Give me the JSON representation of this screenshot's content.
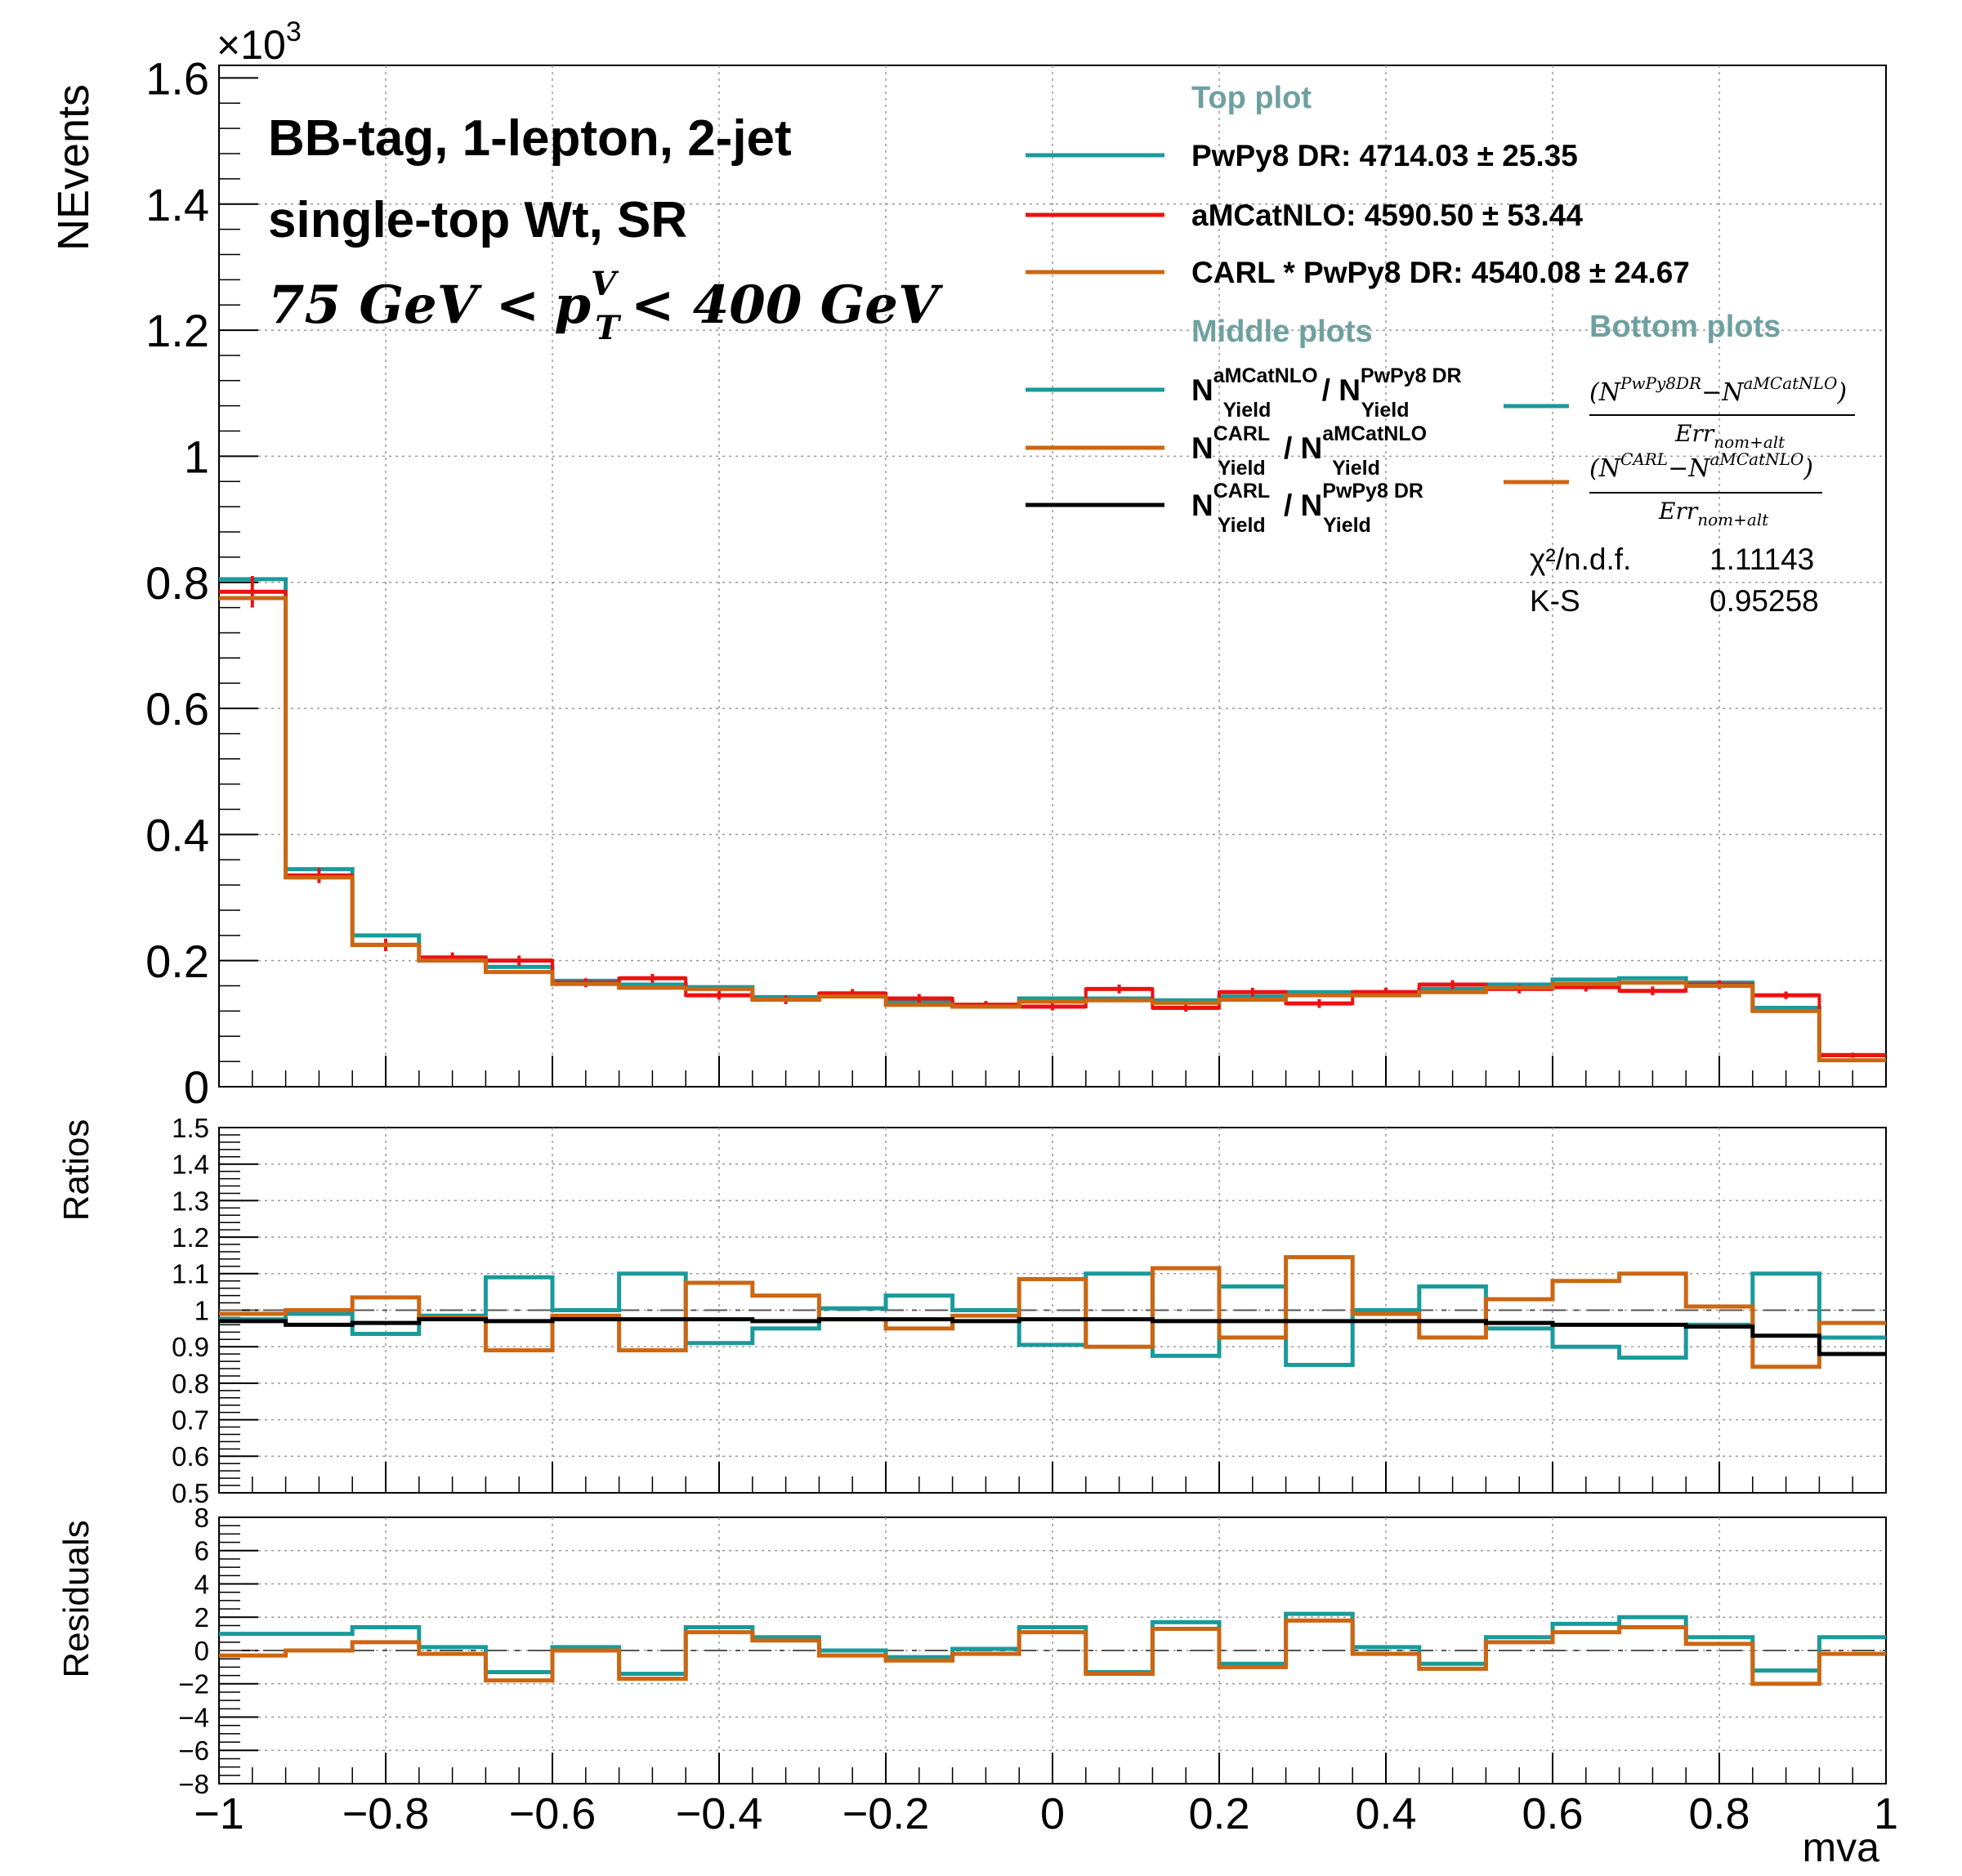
{
  "chart_data": {
    "type": "line",
    "xlabel": "mva",
    "x_edges": [
      -1.0,
      -0.92,
      -0.84,
      -0.76,
      -0.68,
      -0.6,
      -0.52,
      -0.44,
      -0.36,
      -0.28,
      -0.2,
      -0.12,
      -0.04,
      0.04,
      0.12,
      0.2,
      0.28,
      0.36,
      0.44,
      0.52,
      0.6,
      0.68,
      0.76,
      0.84,
      0.92,
      1.0
    ],
    "x_ticks": [
      "−1",
      "−0.8",
      "−0.6",
      "−0.4",
      "−0.2",
      "0",
      "0.2",
      "0.4",
      "0.6",
      "0.8",
      "1"
    ],
    "x_tick_values": [
      -1,
      -0.8,
      -0.6,
      -0.4,
      -0.2,
      0,
      0.2,
      0.4,
      0.6,
      0.8,
      1
    ],
    "colors": {
      "teal": "#1a9a9a",
      "red": "#ee1111",
      "orange": "#cc6612",
      "black": "#000000",
      "legend_header": "#6fa0a0"
    },
    "annotation": {
      "line1": "BB-tag, 1-lepton, 2-jet",
      "line2": "single-top Wt, SR",
      "line3_left": "75 GeV <",
      "line3_pt_base": "p",
      "line3_pt_sup": "V",
      "line3_pt_sub": "T",
      "line3_right": "< 400 GeV"
    },
    "top": {
      "ylabel": "NEvents",
      "exponent_label": "×10",
      "exponent_power": "3",
      "ylim": [
        0,
        1.62
      ],
      "y_ticks": [
        "0",
        "0.2",
        "0.4",
        "0.6",
        "0.8",
        "1",
        "1.2",
        "1.4",
        "1.6"
      ],
      "y_tick_values": [
        0,
        0.2,
        0.4,
        0.6,
        0.8,
        1.0,
        1.2,
        1.4,
        1.6
      ],
      "series": [
        {
          "name": "PwPy8 DR: 4714.03 ± 25.35",
          "color": "teal",
          "style": "step",
          "values": [
            0.805,
            0.345,
            0.24,
            0.205,
            0.19,
            0.168,
            0.162,
            0.158,
            0.142,
            0.145,
            0.135,
            0.13,
            0.14,
            0.14,
            0.137,
            0.143,
            0.15,
            0.15,
            0.155,
            0.162,
            0.17,
            0.172,
            0.165,
            0.125,
            0.05
          ]
        },
        {
          "name": "aMCatNLO: 4590.50 ± 53.44",
          "color": "red",
          "style": "errorbar",
          "values": [
            0.785,
            0.335,
            0.225,
            0.205,
            0.2,
            0.165,
            0.172,
            0.145,
            0.138,
            0.148,
            0.14,
            0.13,
            0.127,
            0.155,
            0.125,
            0.15,
            0.132,
            0.15,
            0.162,
            0.155,
            0.158,
            0.152,
            0.162,
            0.145,
            0.05
          ],
          "errors": [
            0.025,
            0.012,
            0.01,
            0.008,
            0.008,
            0.007,
            0.007,
            0.007,
            0.007,
            0.007,
            0.007,
            0.006,
            0.006,
            0.007,
            0.006,
            0.007,
            0.007,
            0.007,
            0.007,
            0.007,
            0.007,
            0.007,
            0.007,
            0.006,
            0.004
          ]
        },
        {
          "name": "CARL * PwPy8 DR: 4540.08 ± 24.67",
          "color": "orange",
          "style": "step",
          "values": [
            0.775,
            0.332,
            0.225,
            0.2,
            0.182,
            0.163,
            0.157,
            0.155,
            0.138,
            0.143,
            0.13,
            0.127,
            0.135,
            0.137,
            0.133,
            0.138,
            0.145,
            0.145,
            0.15,
            0.157,
            0.163,
            0.165,
            0.16,
            0.12,
            0.042
          ]
        }
      ]
    },
    "middle": {
      "ylabel": "Ratios",
      "ylim": [
        0.5,
        1.5
      ],
      "y_ticks": [
        "0.5",
        "0.6",
        "0.7",
        "0.8",
        "0.9",
        "1",
        "1.1",
        "1.2",
        "1.3",
        "1.4",
        "1.5"
      ],
      "y_tick_values": [
        0.5,
        0.6,
        0.7,
        0.8,
        0.9,
        1.0,
        1.1,
        1.2,
        1.3,
        1.4,
        1.5
      ],
      "series": [
        {
          "name": "aMCatNLO / PwPy8 DR",
          "color": "teal",
          "values": [
            0.975,
            0.99,
            0.935,
            0.985,
            1.09,
            1.0,
            1.1,
            0.91,
            0.95,
            1.005,
            1.04,
            1.0,
            0.905,
            1.1,
            0.875,
            1.065,
            0.85,
            1.0,
            1.065,
            0.95,
            0.9,
            0.87,
            0.96,
            1.1,
            0.925
          ]
        },
        {
          "name": "CARL / aMCatNLO",
          "color": "orange",
          "values": [
            0.99,
            1.0,
            1.035,
            0.98,
            0.89,
            0.985,
            0.89,
            1.075,
            1.04,
            0.975,
            0.95,
            0.985,
            1.085,
            0.9,
            1.115,
            0.925,
            1.145,
            0.99,
            0.925,
            1.03,
            1.08,
            1.1,
            1.01,
            0.845,
            0.965
          ]
        },
        {
          "name": "CARL / PwPy8 DR",
          "color": "black",
          "values": [
            0.97,
            0.96,
            0.965,
            0.975,
            0.97,
            0.975,
            0.975,
            0.975,
            0.97,
            0.975,
            0.975,
            0.97,
            0.975,
            0.975,
            0.97,
            0.97,
            0.97,
            0.97,
            0.97,
            0.965,
            0.96,
            0.96,
            0.955,
            0.93,
            0.88
          ]
        }
      ]
    },
    "bottom": {
      "ylabel": "Residuals",
      "ylim": [
        -8,
        8
      ],
      "y_ticks": [
        "−8",
        "−6",
        "−4",
        "−2",
        "0",
        "2",
        "4",
        "6",
        "8"
      ],
      "y_tick_values": [
        -8,
        -6,
        -4,
        -2,
        0,
        2,
        4,
        6,
        8
      ],
      "series": [
        {
          "name": "(N PwPy8DR − N aMCatNLO) / Err nom+alt",
          "color": "teal",
          "values": [
            1.0,
            1.0,
            1.4,
            0.2,
            -1.3,
            0.2,
            -1.4,
            1.4,
            0.8,
            0.0,
            -0.4,
            0.1,
            1.4,
            -1.3,
            1.7,
            -0.8,
            2.2,
            0.2,
            -0.8,
            0.8,
            1.6,
            2.0,
            0.8,
            -1.2,
            0.8
          ]
        },
        {
          "name": "(N CARL − N aMCatNLO) / Err nom+alt",
          "color": "orange",
          "values": [
            -0.3,
            0.0,
            0.5,
            -0.2,
            -1.8,
            0.0,
            -1.7,
            1.1,
            0.6,
            -0.3,
            -0.6,
            -0.2,
            1.1,
            -1.4,
            1.3,
            -1.0,
            1.8,
            -0.2,
            -1.1,
            0.5,
            1.1,
            1.4,
            0.4,
            -2.0,
            -0.2
          ]
        }
      ]
    },
    "legend": {
      "placement": "top-right",
      "top_header": "Top plot",
      "middle_header": "Middle plots",
      "bottom_header": "Bottom plots",
      "ratio_entries": [
        {
          "num_sup": "aMCatNLO",
          "den_sup": "PwPy8 DR",
          "sub": "Yield",
          "color": "teal"
        },
        {
          "num_sup": "CARL",
          "den_sup": "aMCatNLO",
          "sub": "Yield",
          "color": "orange"
        },
        {
          "num_sup": "CARL",
          "den_sup": "PwPy8 DR",
          "sub": "Yield",
          "color": "black"
        }
      ],
      "residual_entries": [
        {
          "a": "PwPy8DR",
          "b": "aMCatNLO",
          "den": "Err",
          "den_sub": "nom+alt",
          "color": "teal"
        },
        {
          "a": "CARL",
          "b": "aMCatNLO",
          "den": "Err",
          "den_sub": "nom+alt",
          "color": "orange"
        }
      ]
    },
    "stats": [
      {
        "label": "χ²/n.d.f.",
        "value": "1.11143"
      },
      {
        "label": "K-S",
        "value": "0.95258"
      }
    ]
  }
}
